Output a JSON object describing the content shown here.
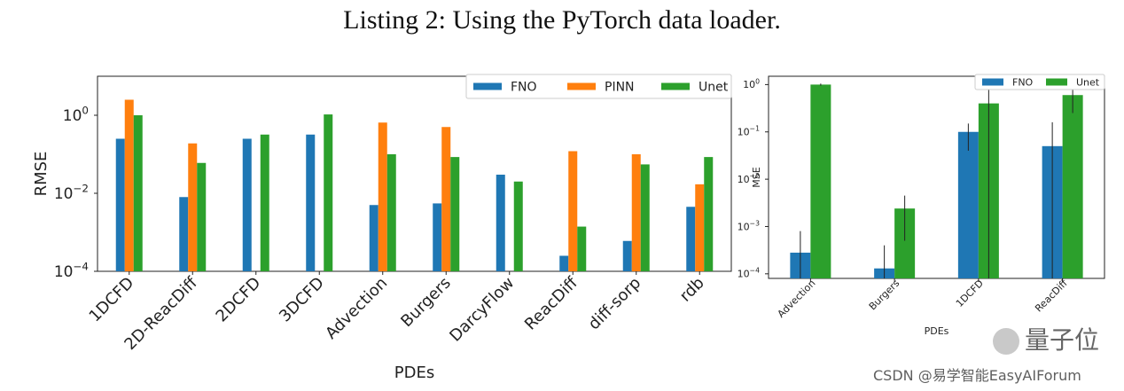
{
  "caption": "Listing 2: Using the PyTorch data loader.",
  "colors": {
    "FNO": "#1f77b4",
    "PINN": "#ff7f0e",
    "Unet": "#2ca02c"
  },
  "chart_data": [
    {
      "type": "bar",
      "title": "",
      "xlabel": "PDEs",
      "ylabel": "RMSE",
      "yscale": "log",
      "ylim": [
        0.0001,
        10
      ],
      "yticks": [
        {
          "value": 0.0001,
          "base": "10",
          "exp": "−4"
        },
        {
          "value": 0.01,
          "base": "10",
          "exp": "−2"
        },
        {
          "value": 1,
          "base": "10",
          "exp": "0"
        }
      ],
      "legend_position": "top-right",
      "grid": false,
      "categories": [
        "1DCFD",
        "2D-ReacDiff",
        "2DCFD",
        "3DCFD",
        "Advection",
        "Burgers",
        "DarcyFlow",
        "ReacDiff",
        "diff-sorp",
        "rdb"
      ],
      "series": [
        {
          "name": "FNO",
          "values": [
            0.25,
            0.008,
            0.25,
            0.32,
            0.005,
            0.0055,
            0.03,
            0.00025,
            0.0006,
            0.0045
          ]
        },
        {
          "name": "PINN",
          "values": [
            2.5,
            0.19,
            null,
            null,
            0.65,
            0.5,
            null,
            0.12,
            0.1,
            0.017
          ]
        },
        {
          "name": "Unet",
          "values": [
            1.0,
            0.06,
            0.32,
            1.05,
            0.1,
            0.085,
            0.02,
            0.0014,
            0.055,
            0.085
          ]
        }
      ]
    },
    {
      "type": "bar",
      "title": "",
      "xlabel": "PDEs",
      "ylabel": "MSE",
      "yscale": "log",
      "ylim": [
        8e-05,
        1.5
      ],
      "yticks": [
        {
          "value": 0.0001,
          "base": "10",
          "exp": "−4"
        },
        {
          "value": 0.001,
          "base": "10",
          "exp": "−3"
        },
        {
          "value": 0.01,
          "base": "10",
          "exp": "−2"
        },
        {
          "value": 0.1,
          "base": "10",
          "exp": "−1"
        },
        {
          "value": 1,
          "base": "10",
          "exp": "0"
        }
      ],
      "legend_position": "top-right",
      "grid": false,
      "categories": [
        "Advection",
        "Burgers",
        "1DCFD",
        "ReacDiff"
      ],
      "series": [
        {
          "name": "FNO",
          "values": [
            0.00028,
            0.00013,
            0.1,
            0.05
          ],
          "err_low": [
            8e-05,
            8e-05,
            0.04,
            8e-05
          ],
          "err_high": [
            0.0008,
            0.0004,
            0.15,
            0.16
          ]
        },
        {
          "name": "Unet",
          "values": [
            1.0,
            0.0024,
            0.4,
            0.6
          ],
          "err_low": [
            0.95,
            0.0005,
            8e-05,
            0.25
          ],
          "err_high": [
            1.05,
            0.0045,
            1.3,
            1.4
          ]
        }
      ]
    }
  ],
  "watermark": {
    "logo_text": "量子位",
    "source_text": "CSDN @易学智能EasyAIForum"
  }
}
